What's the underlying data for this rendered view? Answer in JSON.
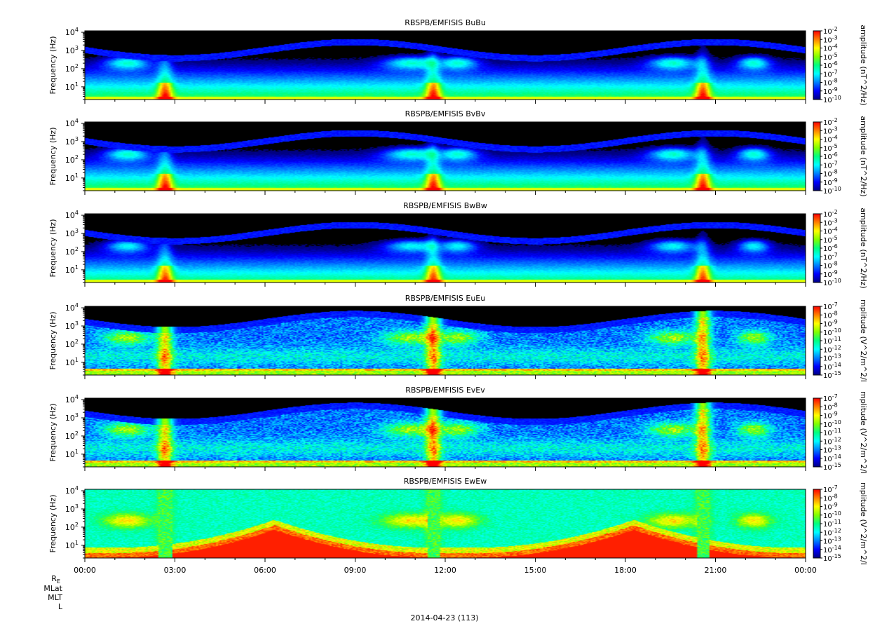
{
  "figure": {
    "date_label": "2014-04-23 (113)",
    "ephemeris_labels": [
      "R",
      "MLat",
      "MLT",
      "L"
    ],
    "ephemeris_subscript": "E"
  },
  "colors": {
    "colormap": [
      "#000080",
      "#0000ff",
      "#0080ff",
      "#00ffff",
      "#00ff80",
      "#80ff00",
      "#ffff00",
      "#ff8000",
      "#ff0000"
    ],
    "background": "#000000",
    "frame": "#000000"
  },
  "chart_data": [
    {
      "type": "heatmap",
      "title": "RBSPB/EMFISIS  BuBu",
      "ylabel": "Frequency (Hz)",
      "yscale": "log",
      "ylim": [
        2,
        12000
      ],
      "yticks": [
        "10",
        "10",
        "10",
        "10"
      ],
      "ytick_exponents": [
        "1",
        "2",
        "3",
        "4"
      ],
      "xlim": [
        "2014-04-23 00:00",
        "2014-04-24 00:00"
      ],
      "colorbar": {
        "label": "amplitude (nT^2/Hz)",
        "scale": "log",
        "range": [
          1e-10,
          0.01
        ],
        "ticks": [
          "10",
          "10",
          "10",
          "10",
          "10",
          "10",
          "10",
          "10",
          "10"
        ],
        "tick_exponents": [
          "-2",
          "-3",
          "-4",
          "-5",
          "-6",
          "-7",
          "-8",
          "-9",
          "-10"
        ]
      },
      "variant": "B"
    },
    {
      "type": "heatmap",
      "title": "RBSPB/EMFISIS  BvBv",
      "ylabel": "Frequency (Hz)",
      "yscale": "log",
      "ylim": [
        2,
        12000
      ],
      "yticks": [
        "10",
        "10",
        "10",
        "10"
      ],
      "ytick_exponents": [
        "1",
        "2",
        "3",
        "4"
      ],
      "xlim": [
        "2014-04-23 00:00",
        "2014-04-24 00:00"
      ],
      "colorbar": {
        "label": "amplitude (nT^2/Hz)",
        "scale": "log",
        "range": [
          1e-10,
          0.01
        ],
        "ticks": [
          "10",
          "10",
          "10",
          "10",
          "10",
          "10",
          "10",
          "10",
          "10"
        ],
        "tick_exponents": [
          "-2",
          "-3",
          "-4",
          "-5",
          "-6",
          "-7",
          "-8",
          "-9",
          "-10"
        ]
      },
      "variant": "B"
    },
    {
      "type": "heatmap",
      "title": "RBSPB/EMFISIS  BwBw",
      "ylabel": "Frequency (Hz)",
      "yscale": "log",
      "ylim": [
        2,
        12000
      ],
      "yticks": [
        "10",
        "10",
        "10",
        "10"
      ],
      "ytick_exponents": [
        "1",
        "2",
        "3",
        "4"
      ],
      "xlim": [
        "2014-04-23 00:00",
        "2014-04-24 00:00"
      ],
      "colorbar": {
        "label": "amplitude (nT^2/Hz)",
        "scale": "log",
        "range": [
          1e-10,
          0.01
        ],
        "ticks": [
          "10",
          "10",
          "10",
          "10",
          "10",
          "10",
          "10",
          "10",
          "10"
        ],
        "tick_exponents": [
          "-2",
          "-3",
          "-4",
          "-5",
          "-6",
          "-7",
          "-8",
          "-9",
          "-10"
        ]
      },
      "variant": "Bw"
    },
    {
      "type": "heatmap",
      "title": "RBSPB/EMFISIS  EuEu",
      "ylabel": "Frequency (Hz)",
      "yscale": "log",
      "ylim": [
        2,
        12000
      ],
      "yticks": [
        "10",
        "10",
        "10",
        "10"
      ],
      "ytick_exponents": [
        "1",
        "2",
        "3",
        "4"
      ],
      "xlim": [
        "2014-04-23 00:00",
        "2014-04-24 00:00"
      ],
      "colorbar": {
        "label": "mplitude (V^2/m^2/l",
        "scale": "log",
        "range": [
          1e-15,
          1e-07
        ],
        "ticks": [
          "10",
          "10",
          "10",
          "10",
          "10",
          "10",
          "10",
          "10",
          "10"
        ],
        "tick_exponents": [
          "-7",
          "-8",
          "-9",
          "-10",
          "-11",
          "-12",
          "-13",
          "-14",
          "-15"
        ]
      },
      "variant": "E"
    },
    {
      "type": "heatmap",
      "title": "RBSPB/EMFISIS  EvEv",
      "ylabel": "Frequency (Hz)",
      "yscale": "log",
      "ylim": [
        2,
        12000
      ],
      "yticks": [
        "10",
        "10",
        "10",
        "10"
      ],
      "ytick_exponents": [
        "1",
        "2",
        "3",
        "4"
      ],
      "xlim": [
        "2014-04-23 00:00",
        "2014-04-24 00:00"
      ],
      "colorbar": {
        "label": "mplitude (V^2/m^2/l",
        "scale": "log",
        "range": [
          1e-15,
          1e-07
        ],
        "ticks": [
          "10",
          "10",
          "10",
          "10",
          "10",
          "10",
          "10",
          "10",
          "10"
        ],
        "tick_exponents": [
          "-7",
          "-8",
          "-9",
          "-10",
          "-11",
          "-12",
          "-13",
          "-14",
          "-15"
        ]
      },
      "variant": "E"
    },
    {
      "type": "heatmap",
      "title": "RBSPB/EMFISIS  EwEw",
      "ylabel": "Frequency (Hz)",
      "yscale": "log",
      "ylim": [
        2,
        12000
      ],
      "yticks": [
        "10",
        "10",
        "10",
        "10"
      ],
      "ytick_exponents": [
        "1",
        "2",
        "3",
        "4"
      ],
      "xlim": [
        "2014-04-23 00:00",
        "2014-04-24 00:00"
      ],
      "xticks": [
        "00:00",
        "03:00",
        "06:00",
        "09:00",
        "12:00",
        "15:00",
        "18:00",
        "21:00",
        "00:00"
      ],
      "colorbar": {
        "label": "mplitude (V^2/m^2/l",
        "scale": "log",
        "range": [
          1e-15,
          1e-07
        ],
        "ticks": [
          "10",
          "10",
          "10",
          "10",
          "10",
          "10",
          "10",
          "10",
          "10"
        ],
        "tick_exponents": [
          "-7",
          "-8",
          "-9",
          "-10",
          "-11",
          "-12",
          "-13",
          "-14",
          "-15"
        ]
      },
      "variant": "Ew"
    }
  ]
}
